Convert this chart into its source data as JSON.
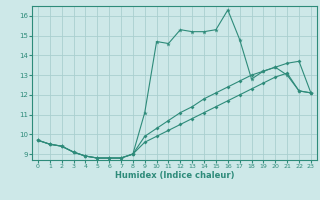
{
  "xlabel": "Humidex (Indice chaleur)",
  "x_values": [
    0,
    1,
    2,
    3,
    4,
    5,
    6,
    7,
    8,
    9,
    10,
    11,
    12,
    13,
    14,
    15,
    16,
    17,
    18,
    19,
    20,
    21,
    22,
    23
  ],
  "line1": [
    9.7,
    9.5,
    9.4,
    9.1,
    8.9,
    8.8,
    8.8,
    8.8,
    9.0,
    11.1,
    14.7,
    14.6,
    15.3,
    15.2,
    15.2,
    15.3,
    16.3,
    14.8,
    12.8,
    13.2,
    13.4,
    13.0,
    12.2,
    12.1
  ],
  "line2": [
    9.7,
    9.5,
    9.4,
    9.1,
    8.9,
    8.8,
    8.8,
    8.8,
    9.0,
    9.9,
    10.3,
    10.7,
    11.1,
    11.4,
    11.8,
    12.1,
    12.4,
    12.7,
    13.0,
    13.2,
    13.4,
    13.6,
    13.7,
    12.1
  ],
  "line3": [
    9.7,
    9.5,
    9.4,
    9.1,
    8.9,
    8.8,
    8.8,
    8.8,
    9.0,
    9.6,
    9.9,
    10.2,
    10.5,
    10.8,
    11.1,
    11.4,
    11.7,
    12.0,
    12.3,
    12.6,
    12.9,
    13.1,
    12.2,
    12.1
  ],
  "line_color": "#2e8b7a",
  "bg_color": "#cde8e8",
  "grid_color": "#aacfcf",
  "ylim": [
    8.7,
    16.5
  ],
  "xlim": [
    -0.5,
    23.5
  ],
  "yticks": [
    9,
    10,
    11,
    12,
    13,
    14,
    15,
    16
  ],
  "xticks": [
    0,
    1,
    2,
    3,
    4,
    5,
    6,
    7,
    8,
    9,
    10,
    11,
    12,
    13,
    14,
    15,
    16,
    17,
    18,
    19,
    20,
    21,
    22,
    23
  ]
}
